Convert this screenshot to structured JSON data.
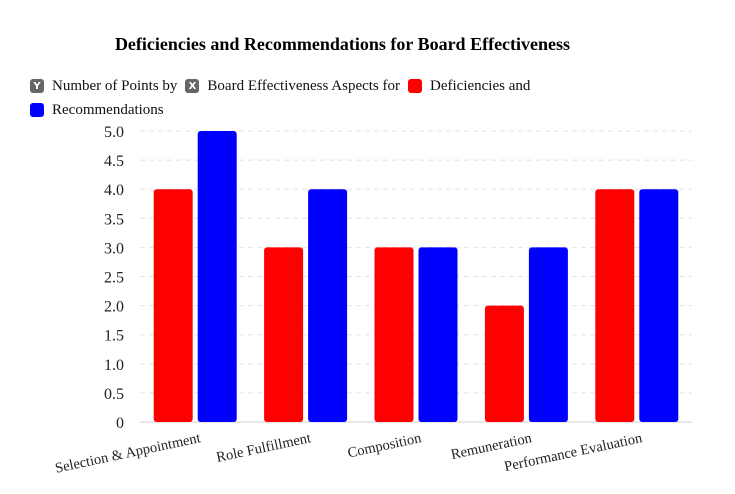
{
  "chart_data": {
    "type": "bar",
    "title": "Deficiencies and Recommendations for Board Effectiveness",
    "categories": [
      "Selection & Appointment",
      "Role Fulfillment",
      "Composition",
      "Remuneration",
      "Performance Evaluation"
    ],
    "series": [
      {
        "name": "Deficiencies and",
        "color": "#ff0000",
        "values": [
          4,
          3,
          3,
          2,
          4
        ]
      },
      {
        "name": "Recommendations",
        "color": "#0000ff",
        "values": [
          5,
          4,
          3,
          3,
          4
        ]
      }
    ],
    "legend_extra": [
      {
        "label": "Number of Points by",
        "icon": "y-icon",
        "glyph": "Y"
      },
      {
        "label": "Board Effectiveness Aspects for",
        "icon": "x-icon",
        "glyph": "X"
      }
    ],
    "yticks": [
      "0",
      "0.5",
      "1.0",
      "1.5",
      "2.0",
      "2.5",
      "3.0",
      "3.5",
      "4.0",
      "4.5",
      "5.0"
    ],
    "ylim": [
      0,
      5
    ],
    "grid": true,
    "legend_position": "top-left"
  }
}
